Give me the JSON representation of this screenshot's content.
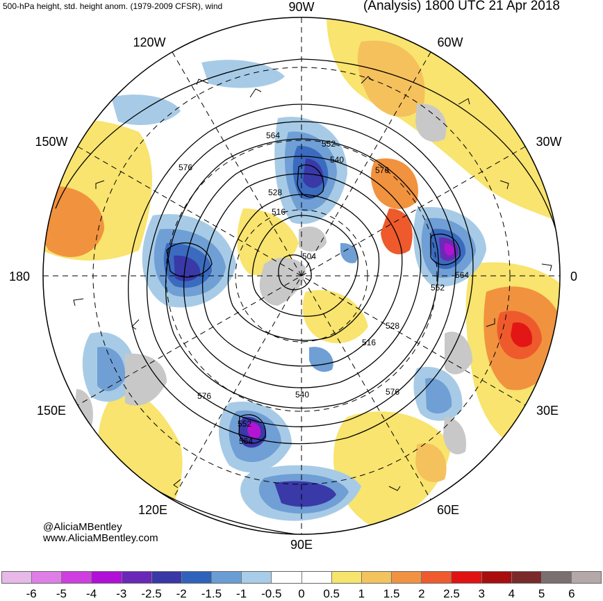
{
  "header": {
    "subtitle": "500-hPa height, std. height anom. (1979-2009 CFSR), wind",
    "title": "(Analysis) 1800 UTC 21 Apr 2018"
  },
  "map": {
    "projection": "north-polar-stereographic",
    "lon_labels": {
      "top": "90W",
      "left_upper": "120W",
      "right_upper": "60W",
      "left_mid_upper": "150W",
      "right_mid_upper": "30W",
      "left": "180",
      "right": "0",
      "left_mid_lower": "150E",
      "right_mid_lower": "30E",
      "left_lower": "120E",
      "right_lower": "60E",
      "bottom": "90E"
    },
    "contour_labels": [
      "564",
      "552",
      "540",
      "528",
      "516",
      "504",
      "576",
      "552",
      "564",
      "528",
      "516",
      "540",
      "576",
      "576",
      "552",
      "564",
      "576"
    ],
    "colors": {
      "land_gray": "#c8c8c8",
      "neg1": "#a7cbe6",
      "neg15": "#6f9fd4",
      "neg2": "#3b6bbf",
      "neg25": "#3a39a8",
      "neg3": "#6a2ab5",
      "neg4": "#b414d1",
      "pos05": "#ffffff",
      "pos1": "#f8e46e",
      "pos15": "#f5c15c",
      "pos2": "#f1923f",
      "pos25": "#ee5a2c",
      "pos3": "#e31616"
    }
  },
  "credits": {
    "handle": "@AliciaMBentley",
    "site": "www.AliciaMBentley.com"
  },
  "colorbar": {
    "colors": [
      "#e8b8e8",
      "#e07ee8",
      "#cf3fe0",
      "#b010d8",
      "#6a28b8",
      "#3a38a6",
      "#2f62bb",
      "#6b9dd5",
      "#a8cde8",
      "#ffffff",
      "#ffffff",
      "#f7e46c",
      "#f3c35d",
      "#f19243",
      "#ef5a2e",
      "#e11212",
      "#a80e0e",
      "#7a2a2a",
      "#7a7070",
      "#b5a8a8"
    ],
    "ticks": [
      "-6",
      "-5",
      "-4",
      "-3",
      "-2.5",
      "-2",
      "-1.5",
      "-1",
      "-0.5",
      "0",
      "0.5",
      "1",
      "1.5",
      "2",
      "2.5",
      "3",
      "4",
      "5",
      "6"
    ]
  }
}
